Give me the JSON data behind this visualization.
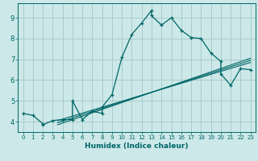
{
  "xlabel": "Humidex (Indice chaleur)",
  "bg_color": "#cce8e8",
  "grid_color": "#aacccc",
  "line_color": "#006666",
  "xlim": [
    -0.5,
    23.5
  ],
  "ylim": [
    3.5,
    9.7
  ],
  "xticks": [
    0,
    1,
    2,
    3,
    4,
    5,
    6,
    7,
    8,
    9,
    10,
    11,
    12,
    13,
    14,
    15,
    16,
    17,
    18,
    19,
    20,
    21,
    22,
    23
  ],
  "yticks": [
    4,
    5,
    6,
    7,
    8,
    9
  ],
  "main_line_x": [
    0,
    1,
    2,
    2,
    3,
    4,
    5,
    5,
    6,
    7,
    8,
    8,
    9,
    10,
    11,
    12,
    13,
    13,
    14,
    15,
    16,
    17,
    18,
    19,
    20,
    20,
    21,
    22,
    23
  ],
  "main_line_y": [
    4.4,
    4.3,
    3.9,
    3.85,
    4.05,
    4.1,
    4.1,
    5.0,
    4.1,
    4.5,
    4.4,
    4.7,
    5.3,
    7.1,
    8.2,
    8.75,
    9.35,
    9.1,
    8.65,
    9.0,
    8.4,
    8.05,
    8.0,
    7.3,
    6.9,
    6.3,
    5.75,
    6.55,
    6.5
  ],
  "line2_x": [
    3.5,
    23
  ],
  "line2_y": [
    4.05,
    6.85
  ],
  "line3_x": [
    3.5,
    23
  ],
  "line3_y": [
    3.85,
    7.05
  ],
  "line4_x": [
    3.5,
    23
  ],
  "line4_y": [
    3.95,
    6.95
  ]
}
